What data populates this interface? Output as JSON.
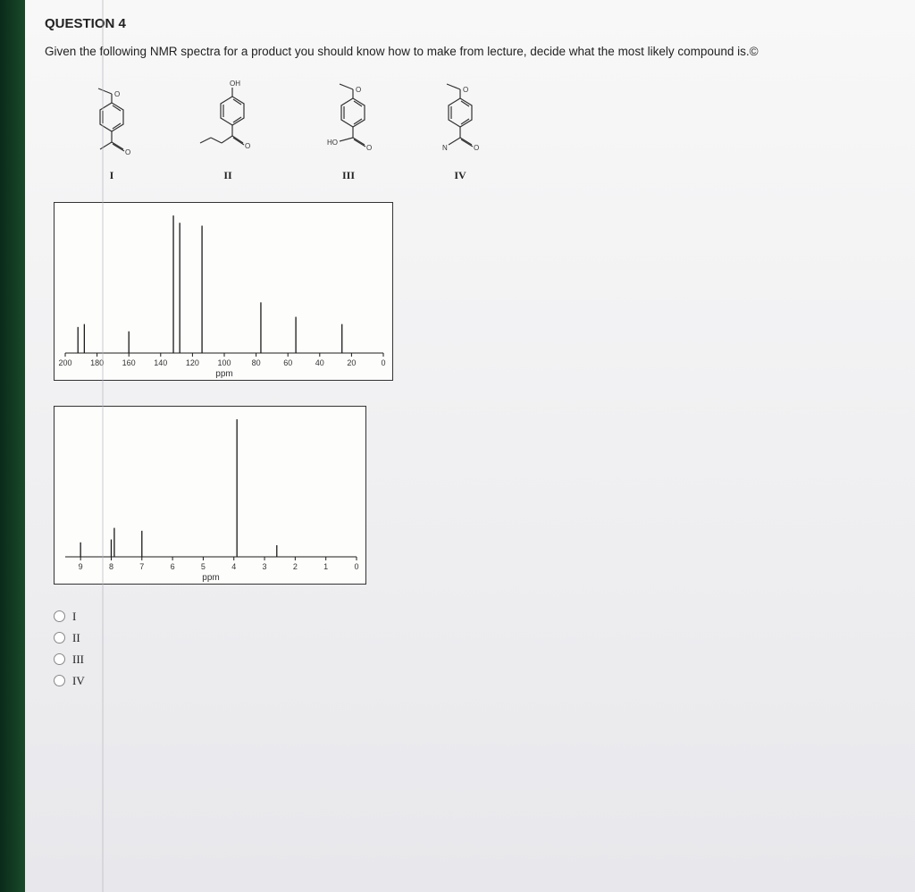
{
  "header": "QUESTION 4",
  "prompt": "Given the following NMR spectra for a product you should know how to make from lecture, decide what the most likely compound is.©",
  "structures": [
    {
      "label": "I"
    },
    {
      "label": "II",
      "top_label": "OH"
    },
    {
      "label": "III",
      "side_label": "HO"
    },
    {
      "label": "IV"
    }
  ],
  "spectrum_c13": {
    "axis_label": "ppm",
    "xlim": [
      0,
      200
    ],
    "ticks": [
      200,
      180,
      160,
      140,
      120,
      100,
      80,
      60,
      40,
      20,
      0
    ],
    "peaks": [
      {
        "ppm": 192,
        "height": 0.18
      },
      {
        "ppm": 188,
        "height": 0.2
      },
      {
        "ppm": 160,
        "height": 0.15
      },
      {
        "ppm": 132,
        "height": 0.95
      },
      {
        "ppm": 128,
        "height": 0.9
      },
      {
        "ppm": 114,
        "height": 0.88
      },
      {
        "ppm": 77,
        "height": 0.35
      },
      {
        "ppm": 55,
        "height": 0.25
      },
      {
        "ppm": 26,
        "height": 0.2
      }
    ],
    "border_color": "#333333",
    "line_color": "#1a1a1a",
    "bg_color": "#fdfdfc",
    "tick_fontsize": 9
  },
  "spectrum_h1": {
    "axis_label": "ppm",
    "xlim": [
      0,
      9.5
    ],
    "ticks": [
      9,
      8,
      7,
      6,
      5,
      4,
      3,
      2,
      1,
      0
    ],
    "peaks": [
      {
        "ppm": 9.0,
        "height": 0.1
      },
      {
        "ppm": 8.0,
        "height": 0.12
      },
      {
        "ppm": 7.9,
        "height": 0.2
      },
      {
        "ppm": 7.0,
        "height": 0.18
      },
      {
        "ppm": 3.9,
        "height": 0.95
      },
      {
        "ppm": 2.6,
        "height": 0.08
      }
    ],
    "border_color": "#333333",
    "line_color": "#1a1a1a",
    "bg_color": "#fdfdfc",
    "tick_fontsize": 9
  },
  "options": [
    {
      "value": "I",
      "label": "I"
    },
    {
      "value": "II",
      "label": "II"
    },
    {
      "value": "III",
      "label": "III"
    },
    {
      "value": "IV",
      "label": "IV"
    }
  ],
  "colors": {
    "page_bg_top": "#f8f8f8",
    "page_bg_bottom": "#e8e8ec",
    "text": "#222222",
    "green_edge": "#1a4a2a"
  }
}
